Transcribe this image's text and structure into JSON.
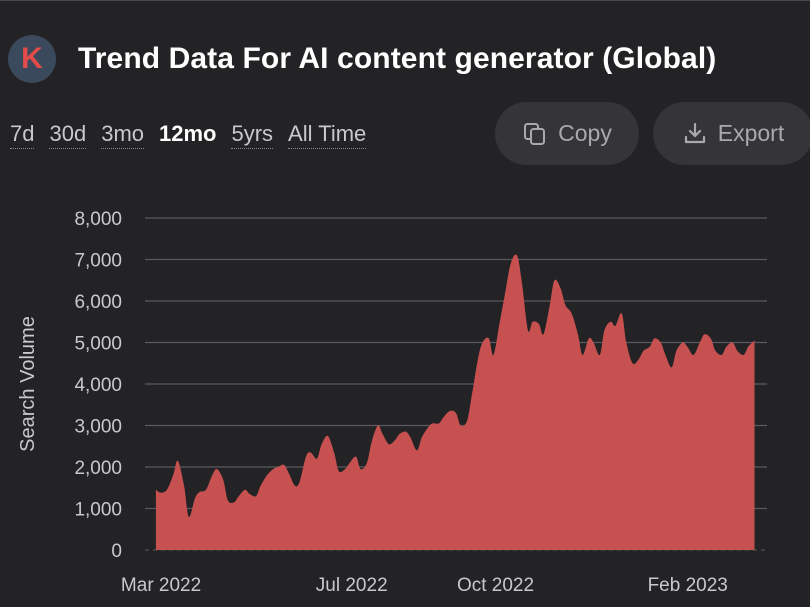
{
  "header": {
    "logo_letter": "K",
    "title": "Trend Data For AI content generator (Global)"
  },
  "ranges": [
    {
      "label": "7d",
      "active": false
    },
    {
      "label": "30d",
      "active": false
    },
    {
      "label": "3mo",
      "active": false
    },
    {
      "label": "12mo",
      "active": true
    },
    {
      "label": "5yrs",
      "active": false
    },
    {
      "label": "All Time",
      "active": false
    }
  ],
  "actions": {
    "copy_label": "Copy",
    "export_label": "Export",
    "copy_icon": "copy-icon",
    "export_icon": "download-icon"
  },
  "colors": {
    "area_fill": "#c65150",
    "background": "#232225",
    "gridline": "#5b5a5f"
  },
  "chart_data": {
    "type": "area",
    "ylabel": "Search Volume",
    "ylim": [
      0,
      8000
    ],
    "yticks": [
      0,
      1000,
      2000,
      3000,
      4000,
      5000,
      6000,
      7000,
      8000
    ],
    "ytick_labels": [
      "0",
      "1,000",
      "2,000",
      "3,000",
      "4,000",
      "5,000",
      "6,000",
      "7,000",
      "8,000"
    ],
    "xlim": [
      "2022-02-20",
      "2023-03-25"
    ],
    "xticks": [
      "2022-03-01",
      "2022-07-01",
      "2022-10-01",
      "2023-02-01"
    ],
    "xtick_labels": [
      "Mar 2022",
      "Jul 2022",
      "Oct 2022",
      "Feb 2023"
    ],
    "grid": true,
    "series": [
      {
        "x": [
          "2022-02-27",
          "2022-03-02",
          "2022-03-06",
          "2022-03-10",
          "2022-03-13",
          "2022-03-17",
          "2022-03-20",
          "2022-03-24",
          "2022-03-27",
          "2022-03-31",
          "2022-04-04",
          "2022-04-07",
          "2022-04-11",
          "2022-04-14",
          "2022-04-18",
          "2022-04-21",
          "2022-04-25",
          "2022-04-28",
          "2022-05-02",
          "2022-05-05",
          "2022-05-09",
          "2022-05-13",
          "2022-05-16",
          "2022-05-20",
          "2022-05-23",
          "2022-05-27",
          "2022-05-30",
          "2022-06-03",
          "2022-06-06",
          "2022-06-10",
          "2022-06-13",
          "2022-06-17",
          "2022-06-21",
          "2022-06-24",
          "2022-06-28",
          "2022-07-01",
          "2022-07-05",
          "2022-07-08",
          "2022-07-12",
          "2022-07-15",
          "2022-07-19",
          "2022-07-22",
          "2022-07-26",
          "2022-07-30",
          "2022-08-02",
          "2022-08-06",
          "2022-08-09",
          "2022-08-13",
          "2022-08-16",
          "2022-08-20",
          "2022-08-23",
          "2022-08-27",
          "2022-08-30",
          "2022-09-03",
          "2022-09-07",
          "2022-09-10",
          "2022-09-14",
          "2022-09-17",
          "2022-09-21",
          "2022-09-24",
          "2022-09-28",
          "2022-10-01",
          "2022-10-05",
          "2022-10-08",
          "2022-10-12",
          "2022-10-16",
          "2022-10-19",
          "2022-10-23",
          "2022-10-26",
          "2022-10-30",
          "2022-11-02",
          "2022-11-06",
          "2022-11-09",
          "2022-11-13",
          "2022-11-16",
          "2022-11-20",
          "2022-11-24",
          "2022-11-27",
          "2022-12-01",
          "2022-12-04",
          "2022-12-08",
          "2022-12-11",
          "2022-12-15",
          "2022-12-18",
          "2022-12-22",
          "2022-12-25",
          "2022-12-29",
          "2023-01-02",
          "2023-01-05",
          "2023-01-09",
          "2023-01-12",
          "2023-01-16",
          "2023-01-19",
          "2023-01-23",
          "2023-01-26",
          "2023-01-30",
          "2023-02-02",
          "2023-02-06",
          "2023-02-10",
          "2023-02-13",
          "2023-02-17",
          "2023-02-20",
          "2023-02-24",
          "2023-02-27",
          "2023-03-03",
          "2023-03-06",
          "2023-03-10",
          "2023-03-13",
          "2023-03-17"
        ],
        "y": [
          1450,
          1380,
          1450,
          1800,
          2150,
          1550,
          800,
          1250,
          1400,
          1450,
          1800,
          1950,
          1700,
          1200,
          1150,
          1300,
          1450,
          1350,
          1300,
          1550,
          1800,
          1950,
          2000,
          2050,
          1850,
          1550,
          1650,
          2250,
          2350,
          2200,
          2550,
          2750,
          2350,
          1900,
          1950,
          2100,
          2250,
          1950,
          2100,
          2600,
          3000,
          2800,
          2550,
          2650,
          2800,
          2850,
          2700,
          2400,
          2700,
          2950,
          3050,
          3050,
          3200,
          3350,
          3300,
          3000,
          3100,
          3700,
          4600,
          5000,
          5100,
          4700,
          5500,
          6100,
          6900,
          7100,
          6500,
          5300,
          5500,
          5450,
          5200,
          5900,
          6500,
          6300,
          5900,
          5700,
          5200,
          4700,
          5100,
          5000,
          4700,
          5300,
          5500,
          5400,
          5700,
          5000,
          4500,
          4600,
          4800,
          4900,
          5100,
          5000,
          4700,
          4400,
          4800,
          5000,
          4900,
          4700,
          5000,
          5200,
          5100,
          4800,
          4700,
          4900,
          5000,
          4800,
          4700,
          4900,
          5050
        ]
      }
    ]
  }
}
